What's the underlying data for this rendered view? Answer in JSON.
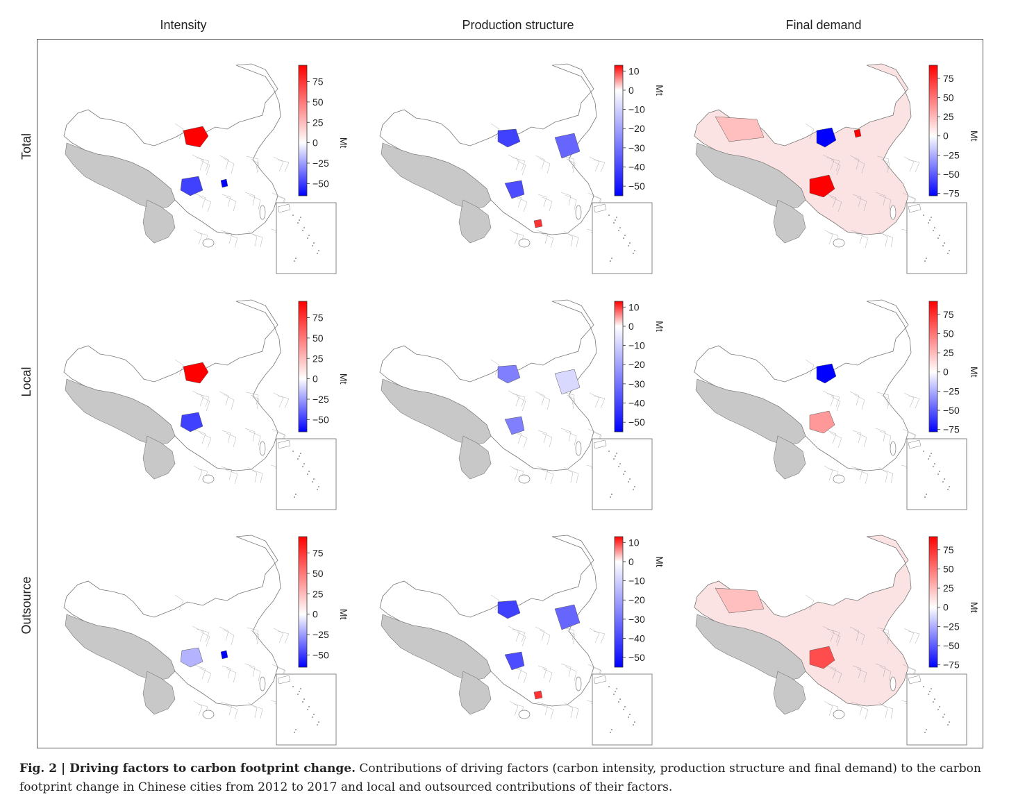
{
  "columns": [
    "Intensity",
    "Production structure",
    "Final demand"
  ],
  "rows": [
    "Total",
    "Local",
    "Outsource"
  ],
  "colorbars": {
    "intensity": {
      "ticks": [
        "75",
        "50",
        "25",
        "0",
        "−25",
        "−50"
      ],
      "values": [
        75,
        50,
        25,
        0,
        -25,
        -50
      ],
      "min": -65,
      "max": 95,
      "unit": "Mt"
    },
    "production": {
      "ticks": [
        "10",
        "0",
        "−10",
        "−20",
        "−30",
        "−40",
        "−50"
      ],
      "values": [
        10,
        0,
        -10,
        -20,
        -30,
        -40,
        -50
      ],
      "min": -55,
      "max": 13,
      "unit": "Mt"
    },
    "demand": {
      "ticks": [
        "75",
        "50",
        "25",
        "0",
        "−25",
        "−50",
        "−75"
      ],
      "values": [
        75,
        50,
        25,
        0,
        -25,
        -50,
        -75
      ],
      "min": -78,
      "max": 92,
      "unit": "Mt"
    }
  },
  "colors": {
    "positive": "#ff0000",
    "negative": "#0000ff",
    "neutral": "#ffffff",
    "no_data": "#c8c8c8"
  },
  "caption": {
    "label": "Fig. 2 | Driving factors to carbon footprint change.",
    "text": " Contributions of driving factors (carbon intensity, production structure and final demand) to the carbon footprint change in Chinese cities from 2012 to 2017 and local and outsourced contributions of their factors."
  }
}
